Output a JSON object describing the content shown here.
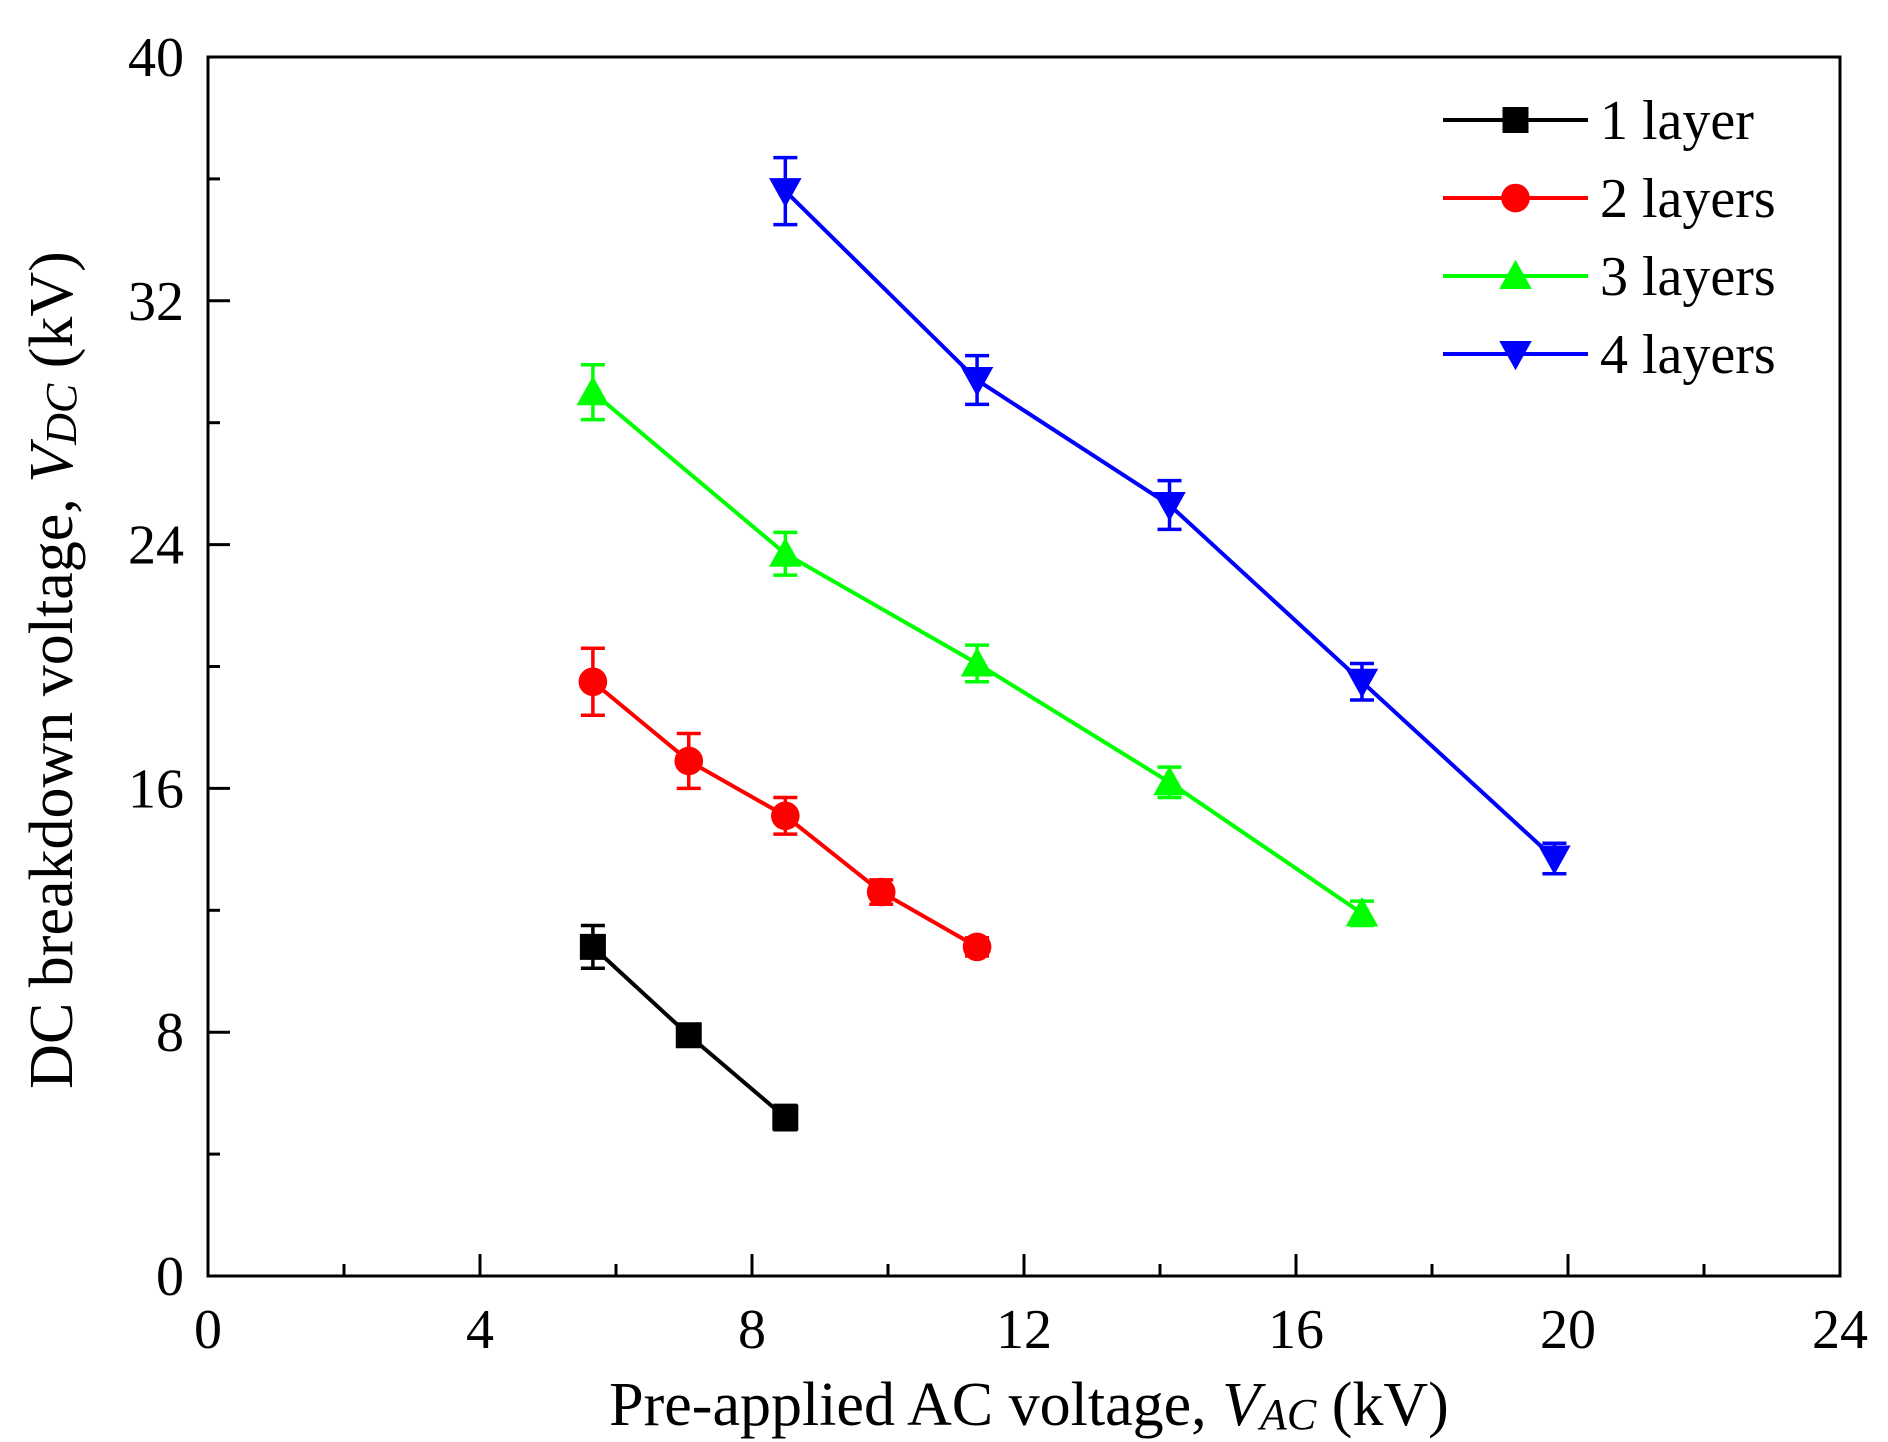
{
  "chart_data": {
    "type": "line",
    "title": "",
    "xlabel": {
      "prefix": "Pre-applied AC voltage, ",
      "var": "V",
      "sub": "AC",
      "suffix": " (kV)"
    },
    "ylabel": {
      "prefix": "DC breakdown voltage, ",
      "var": "V",
      "sub": "DC",
      "suffix": " (kV)"
    },
    "xlim": [
      0,
      24
    ],
    "ylim": [
      0,
      40
    ],
    "xticks": [
      "0",
      "4",
      "8",
      "12",
      "16",
      "20",
      "24"
    ],
    "yticks": [
      "0",
      "8",
      "16",
      "24",
      "32",
      "40"
    ],
    "legend_position": "top-right",
    "series": [
      {
        "name": "1 layer",
        "color": "#000000",
        "marker": "square",
        "x": [
          5.66,
          7.07,
          8.49
        ],
        "y": [
          10.8,
          7.9,
          5.2
        ],
        "err": [
          0.7,
          0.3,
          0.4
        ]
      },
      {
        "name": "2 layers",
        "color": "#ff0000",
        "marker": "circle",
        "x": [
          5.66,
          7.07,
          8.49,
          9.9,
          11.31
        ],
        "y": [
          19.5,
          16.9,
          15.1,
          12.6,
          10.8
        ],
        "err": [
          1.1,
          0.9,
          0.6,
          0.4,
          0.3
        ]
      },
      {
        "name": "3 layers",
        "color": "#00ff00",
        "marker": "triangle-up",
        "x": [
          5.66,
          8.49,
          11.31,
          14.14,
          16.97
        ],
        "y": [
          29.0,
          23.7,
          20.1,
          16.2,
          11.9
        ],
        "err": [
          0.9,
          0.7,
          0.6,
          0.5,
          0.4
        ]
      },
      {
        "name": "4 layers",
        "color": "#0000ff",
        "marker": "triangle-down",
        "x": [
          8.49,
          11.31,
          14.14,
          16.97,
          19.8
        ],
        "y": [
          35.6,
          29.4,
          25.3,
          19.5,
          13.7
        ],
        "err": [
          1.1,
          0.8,
          0.8,
          0.6,
          0.5
        ]
      }
    ]
  }
}
